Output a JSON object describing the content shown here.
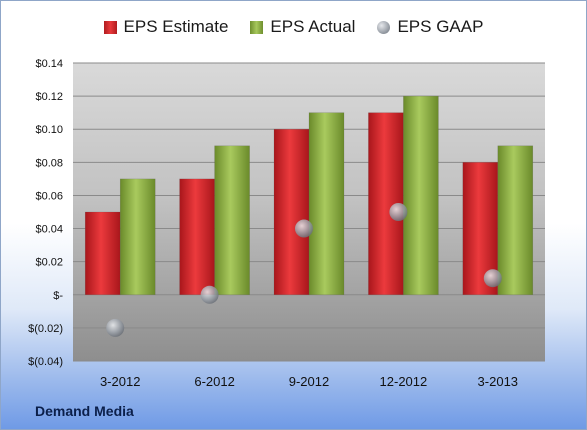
{
  "chart_data": {
    "type": "bar",
    "categories": [
      "3-2012",
      "6-2012",
      "9-2012",
      "12-2012",
      "3-2013"
    ],
    "series": [
      {
        "name": "EPS Estimate",
        "type": "bar",
        "color": "#d9262a",
        "values": [
          0.05,
          0.07,
          0.1,
          0.11,
          0.08
        ]
      },
      {
        "name": "EPS Actual",
        "type": "bar",
        "color": "#93b84a",
        "values": [
          0.07,
          0.09,
          0.11,
          0.12,
          0.09
        ]
      },
      {
        "name": "EPS GAAP",
        "type": "marker",
        "color": "#9aa0a8",
        "values": [
          -0.02,
          0.0,
          0.04,
          0.05,
          0.01
        ]
      }
    ],
    "ylim": [
      -0.04,
      0.14
    ],
    "yticks": [
      0.14,
      0.12,
      0.1,
      0.08,
      0.06,
      0.04,
      0.02,
      0,
      -0.02,
      -0.04
    ],
    "ytick_labels": [
      "$0.14",
      "$0.12",
      "$0.10",
      "$0.08",
      "$0.06",
      "$0.04",
      "$0.02",
      "$-",
      "$(0.02)",
      "$(0.04)"
    ],
    "grid": true,
    "legend_position": "top"
  },
  "source_label": "Demand Media"
}
